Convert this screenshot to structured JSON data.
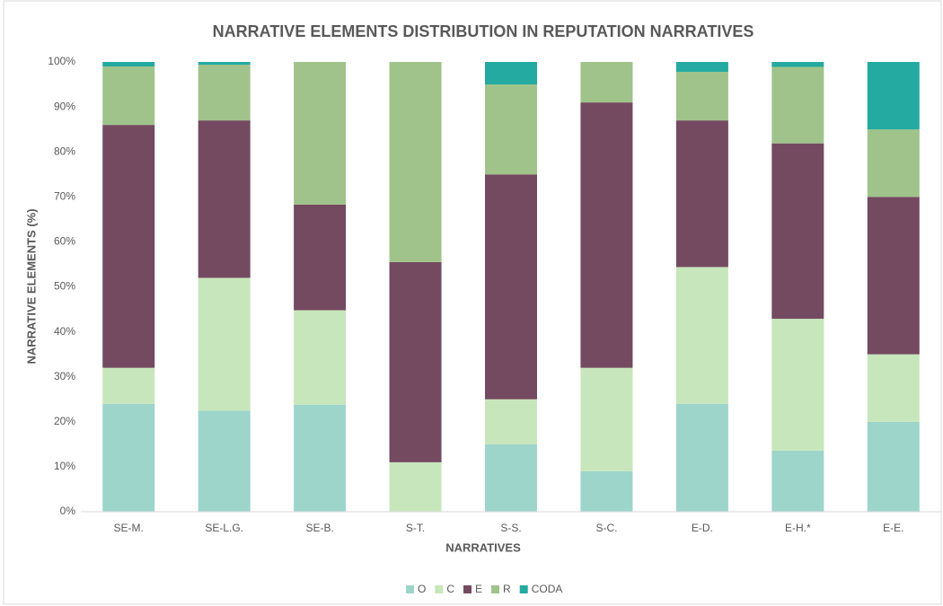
{
  "chart_data": {
    "type": "stacked_bar",
    "title": "NARRATIVE ELEMENTS DISTRIBUTION IN REPUTATION NARRATIVES",
    "x_label": "NARRATIVES",
    "y_label": "NARRATIVE ELEMENTS (%)",
    "categories": [
      "SE-M.",
      "SE-L.G.",
      "SE-B.",
      "S-T.",
      "S-S.",
      "S-C.",
      "E-D.",
      "E-H.*",
      "E-E."
    ],
    "series": [
      {
        "name": "O",
        "color": "#9dd5cb",
        "values": [
          24,
          22.5,
          23.8,
          0,
          15,
          9,
          24,
          13.6,
          20
        ]
      },
      {
        "name": "C",
        "color": "#c8e6bb",
        "values": [
          8,
          29.5,
          21,
          11,
          10,
          23,
          30.4,
          29.3,
          15
        ]
      },
      {
        "name": "E",
        "color": "#744a60",
        "values": [
          54,
          35,
          23.5,
          44.5,
          50,
          59,
          32.6,
          39,
          35
        ]
      },
      {
        "name": "R",
        "color": "#9fc38b",
        "values": [
          13,
          12.4,
          31.7,
          44.5,
          20,
          9,
          10.8,
          17,
          15
        ]
      },
      {
        "name": "CODA",
        "color": "#24aaa0",
        "values": [
          1,
          0.6,
          0,
          0,
          5,
          0,
          2.2,
          1.1,
          15
        ]
      }
    ],
    "ylim": [
      0,
      100
    ],
    "yticks": [
      {
        "value": 0,
        "label": "0%"
      },
      {
        "value": 10,
        "label": "10%"
      },
      {
        "value": 20,
        "label": "20%"
      },
      {
        "value": 30,
        "label": "30%"
      },
      {
        "value": 40,
        "label": "40%"
      },
      {
        "value": 50,
        "label": "50%"
      },
      {
        "value": 60,
        "label": "60%"
      },
      {
        "value": 70,
        "label": "70%"
      },
      {
        "value": 80,
        "label": "80%"
      },
      {
        "value": 90,
        "label": "90%"
      },
      {
        "value": 100,
        "label": "100%"
      }
    ],
    "legend": "bottom"
  }
}
